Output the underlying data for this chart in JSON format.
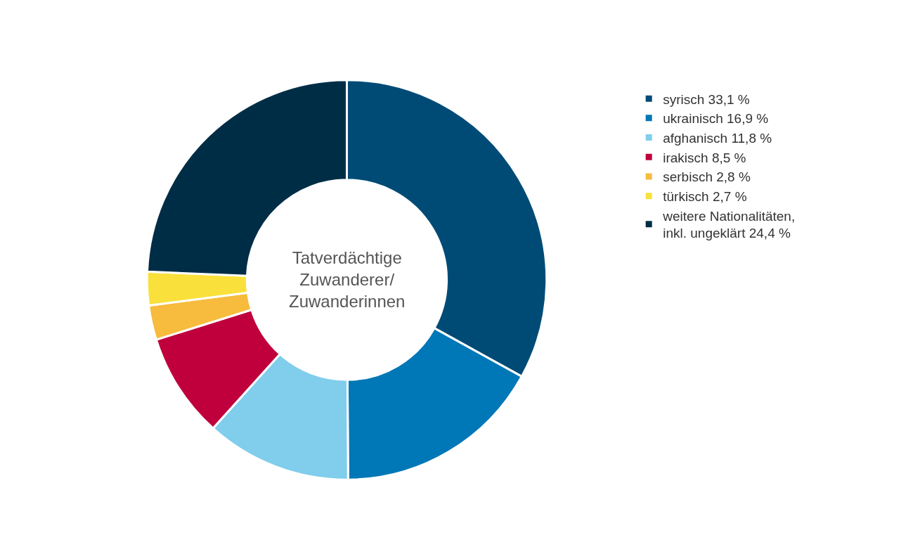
{
  "chart_data": {
    "type": "donut",
    "title": "Tatverdächtige\nZuwanderer/\nZuwanderinnen",
    "categories": [
      "syrisch 33,1 %",
      "ukrainisch 16,9 %",
      "afghanisch 11,8 %",
      "irakisch 8,5 %",
      "serbisch 2,8 %",
      "türkisch 2,7 %",
      "weitere Nationalitäten,\ninkl. ungeklärt 24,4 %"
    ],
    "values": [
      33.1,
      16.9,
      11.8,
      8.5,
      2.8,
      2.7,
      24.4
    ],
    "colors": [
      "#004b76",
      "#0077b6",
      "#80cdec",
      "#c0003c",
      "#f7bb3d",
      "#f9e03b",
      "#002d46"
    ],
    "legend": "right"
  }
}
